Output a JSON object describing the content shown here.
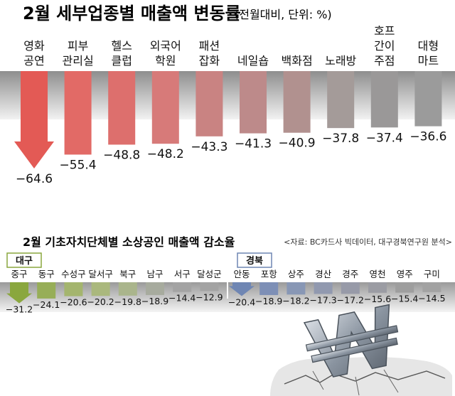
{
  "top": {
    "title": "2월 세부업종별 매출액 변동률",
    "subtitle": "(전월대비, 단위: %)"
  },
  "bottom": {
    "title": "2월 기초자치단체별 소상공인 매출액 감소율",
    "source": "<자료: BC카드사 빅데이터, 대구경북연구원 분석>",
    "region_daegu": "대구",
    "region_gyeongbuk": "경북"
  },
  "chart_data": [
    {
      "type": "bar",
      "title": "2월 세부업종별 매출액 변동률",
      "subtitle": "(전월대비, 단위: %)",
      "categories": [
        [
          "영화",
          "공연"
        ],
        [
          "피부",
          "관리실"
        ],
        [
          "헬스",
          "클럽"
        ],
        [
          "외국어",
          "학원"
        ],
        [
          "패션",
          "잡화"
        ],
        [
          "네일숍"
        ],
        [
          "백화점"
        ],
        [
          "노래방"
        ],
        [
          "호프",
          "간이",
          "주점"
        ],
        [
          "대형",
          "마트"
        ]
      ],
      "values": [
        -64.6,
        -55.4,
        -48.8,
        -48.2,
        -43.3,
        -41.3,
        -40.9,
        -37.8,
        -37.4,
        -36.6
      ],
      "labels": [
        "−64.6",
        "−55.4",
        "−48.8",
        "−48.2",
        "−43.3",
        "−41.3",
        "−40.9",
        "−37.8",
        "−37.4",
        "−36.6"
      ],
      "colors": [
        "#e35a55",
        "#e26a66",
        "#dd6f6d",
        "#d77a79",
        "#c98382",
        "#bd8a8a",
        "#b1918f",
        "#a49b99",
        "#9a9898",
        "#9b9b9b"
      ]
    },
    {
      "type": "bar",
      "title": "2월 기초자치단체별 소상공인 매출액 감소율",
      "groups": [
        {
          "name": "대구",
          "categories": [
            "중구",
            "동구",
            "수성구",
            "달서구",
            "북구",
            "남구",
            "서구",
            "달성군"
          ],
          "values": [
            -31.2,
            -24.1,
            -20.6,
            -20.2,
            -19.8,
            -18.9,
            -14.4,
            -12.9
          ],
          "labels": [
            "−31.2",
            "−24.1",
            "−20.6",
            "−20.2",
            "−19.8",
            "−18.9",
            "−14.4",
            "−12.9"
          ],
          "colors": [
            "#8aa73e",
            "#97ae58",
            "#a4b56e",
            "#aab87d",
            "#aab58c",
            "#a7ab9e",
            "#a3a3a3",
            "#a3a3a3"
          ]
        },
        {
          "name": "경북",
          "categories": [
            "안동",
            "포항",
            "상주",
            "경산",
            "경주",
            "영천",
            "영주",
            "구미"
          ],
          "values": [
            -20.4,
            -18.9,
            -18.2,
            -17.3,
            -17.2,
            -15.6,
            -15.4,
            -14.5
          ],
          "labels": [
            "−20.4",
            "−18.9",
            "−18.2",
            "−17.3",
            "−17.2",
            "−15.6",
            "−15.4",
            "−14.5"
          ],
          "colors": [
            "#6f86b3",
            "#7d8fb6",
            "#8897b5",
            "#9199af",
            "#979aa8",
            "#9b9ca3",
            "#9e9e9e",
            "#a2a2a2"
          ]
        }
      ]
    }
  ]
}
